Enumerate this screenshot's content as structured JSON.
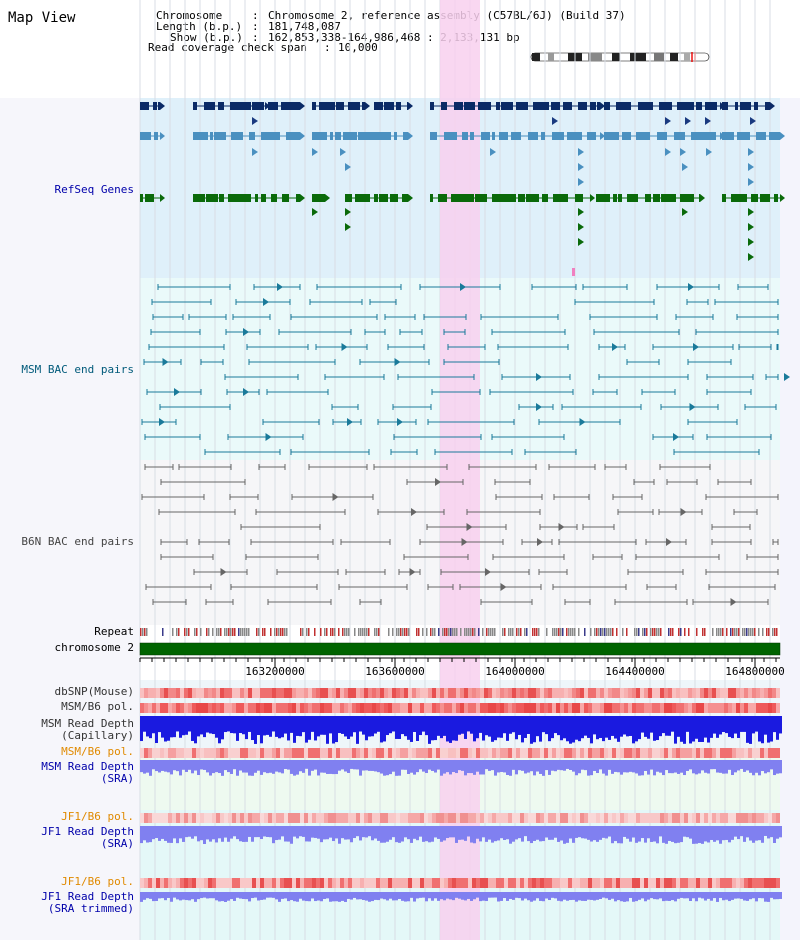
{
  "page": {
    "title": "Map View"
  },
  "info": {
    "chromosome_key": "Chromosome",
    "chromosome_val": "Chromosome 2, reference assembly (C57BL/6J) (Build 37)",
    "length_key": "Length (b.p.)",
    "length_val": "181,748,087",
    "show_key": "Show (b.p.)",
    "show_val": "162,853,338-164,986,468 : 2,133,131 bp",
    "coverage_key": "Read coverage check span",
    "coverage_val": "10,000"
  },
  "tracks": {
    "refseq": "RefSeq Genes",
    "msm_bac": "MSM BAC end pairs",
    "b6n_bac": "B6N BAC end pairs",
    "repeat": "Repeat",
    "chromosome": "chromosome 2",
    "dbsnp": "dbSNP(Mouse)",
    "msm_b6_pol_1": "MSM/B6 pol.",
    "msm_read_depth_cap_1": "MSM Read Depth",
    "msm_read_depth_cap_2": "(Capillary)",
    "msm_b6_pol_2": "MSM/B6 pol.",
    "msm_read_depth_sra_1": "MSM Read Depth",
    "msm_read_depth_sra_2": "(SRA)",
    "jf1_b6_pol_1": "JF1/B6 pol.",
    "jf1_read_depth_sra_1": "JF1 Read Depth",
    "jf1_read_depth_sra_2": "(SRA)",
    "jf1_b6_pol_2": "JF1/B6 pol.",
    "jf1_read_depth_trim_1": "JF1 Read Depth",
    "jf1_read_depth_trim_2": "(SRA trimmed)"
  },
  "axis": {
    "ticks": [
      "163200000",
      "163600000",
      "164000000",
      "164400000",
      "164800000"
    ]
  },
  "colors": {
    "track_blue": "#0000aa",
    "track_teal": "#005a7a",
    "track_gray": "#444444",
    "track_orange": "#e08a00",
    "highlight": "#f8d8f0",
    "chromosome_bar": "#006400"
  }
}
